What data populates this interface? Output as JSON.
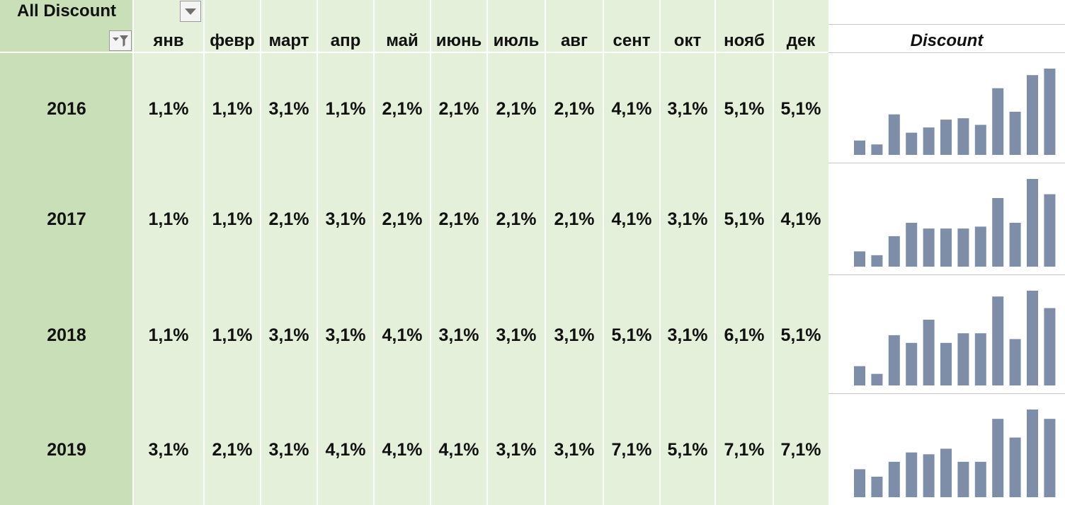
{
  "header": {
    "filter_label": "All Discount",
    "dropdown_icon": "chevron-down-icon",
    "filter_icon": "filter-icon",
    "sparkline_title": "Discount"
  },
  "months": [
    "янв",
    "февр",
    "март",
    "апр",
    "май",
    "июнь",
    "июль",
    "авг",
    "сент",
    "окт",
    "нояб",
    "дек"
  ],
  "rows": [
    {
      "year": "2016",
      "values": [
        "1,1%",
        "1,1%",
        "3,1%",
        "1,1%",
        "2,1%",
        "2,1%",
        "2,1%",
        "2,1%",
        "4,1%",
        "3,1%",
        "5,1%",
        "5,1%"
      ]
    },
    {
      "year": "2017",
      "values": [
        "1,1%",
        "1,1%",
        "2,1%",
        "3,1%",
        "2,1%",
        "2,1%",
        "2,1%",
        "2,1%",
        "4,1%",
        "3,1%",
        "5,1%",
        "4,1%"
      ]
    },
    {
      "year": "2018",
      "values": [
        "1,1%",
        "1,1%",
        "3,1%",
        "3,1%",
        "4,1%",
        "3,1%",
        "3,1%",
        "3,1%",
        "5,1%",
        "3,1%",
        "6,1%",
        "5,1%"
      ]
    },
    {
      "year": "2019",
      "values": [
        "3,1%",
        "2,1%",
        "3,1%",
        "4,1%",
        "4,1%",
        "4,1%",
        "3,1%",
        "3,1%",
        "7,1%",
        "5,1%",
        "7,1%",
        "7,1%"
      ]
    }
  ],
  "chart_data": [
    {
      "type": "bar",
      "categories": [
        "янв",
        "февр",
        "март",
        "апр",
        "май",
        "июнь",
        "июль",
        "авг",
        "сент",
        "окт",
        "нояб",
        "дек"
      ],
      "values": [
        1.1,
        0.8,
        3.1,
        1.7,
        2.1,
        2.7,
        2.8,
        2.3,
        5.1,
        3.3,
        6.1,
        6.6
      ]
    },
    {
      "type": "bar",
      "categories": [
        "янв",
        "февр",
        "март",
        "апр",
        "май",
        "июнь",
        "июль",
        "авг",
        "сент",
        "окт",
        "нояб",
        "дек"
      ],
      "values": [
        0.8,
        0.6,
        1.6,
        2.3,
        2.0,
        2.0,
        2.0,
        2.1,
        3.6,
        2.3,
        4.6,
        3.8
      ]
    },
    {
      "type": "bar",
      "categories": [
        "янв",
        "февр",
        "март",
        "апр",
        "май",
        "июнь",
        "июль",
        "авг",
        "сент",
        "окт",
        "нояб",
        "дек"
      ],
      "values": [
        1.0,
        0.6,
        2.6,
        2.2,
        3.4,
        2.2,
        2.7,
        2.7,
        4.6,
        2.4,
        4.9,
        4.0
      ]
    },
    {
      "type": "bar",
      "categories": [
        "янв",
        "февр",
        "март",
        "апр",
        "май",
        "июнь",
        "июль",
        "авг",
        "сент",
        "окт",
        "нояб",
        "дек"
      ],
      "values": [
        1.5,
        1.1,
        1.9,
        2.4,
        2.3,
        2.6,
        1.9,
        1.9,
        4.2,
        3.2,
        4.7,
        4.2
      ]
    }
  ],
  "colors": {
    "year_column": "#c9dfb8",
    "grid": "#e4f0da",
    "bar": "#7f8ea8"
  }
}
